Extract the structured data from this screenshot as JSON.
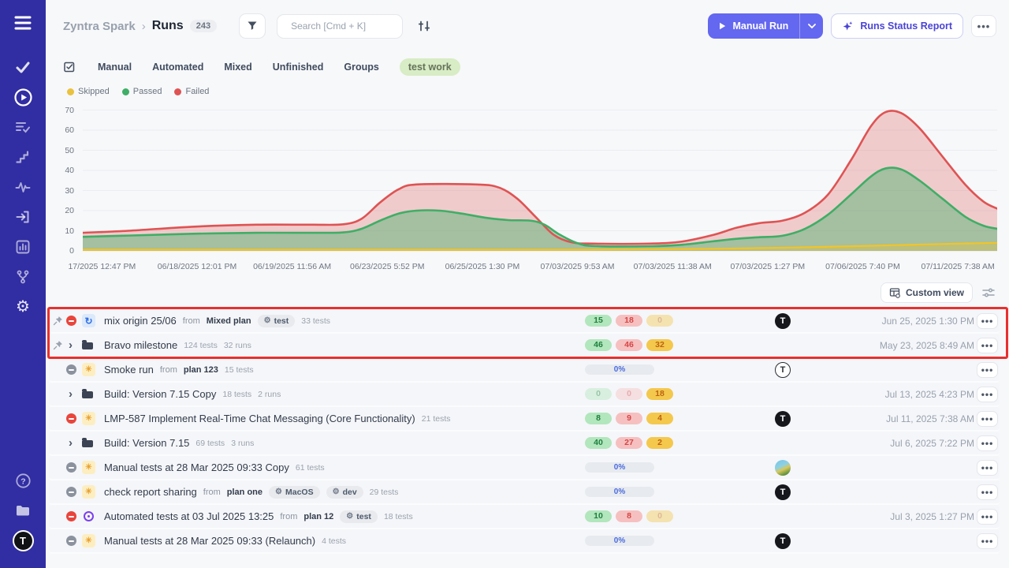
{
  "sidebar": {
    "top_icons": [
      "menu-icon",
      "check-icon",
      "play-circle-icon",
      "test-list-icon",
      "steps-icon",
      "pulse-icon",
      "sign-in-icon",
      "bar-chart-icon",
      "branch-icon",
      "gear-icon"
    ],
    "bottom_icons": [
      "help-icon",
      "folder-icon",
      "user-avatar"
    ],
    "active_icon": "play-circle-icon",
    "brand_color": "#312ea3"
  },
  "header": {
    "breadcrumb": {
      "app": "Zyntra Spark",
      "separator": "›",
      "page": "Runs",
      "count": "243"
    },
    "search": {
      "placeholder": "Search [Cmd + K]"
    },
    "manual_run_label": "Manual Run",
    "report_label": "Runs Status Report"
  },
  "tabs": {
    "items": [
      {
        "label": "Manual",
        "pill": false
      },
      {
        "label": "Automated",
        "pill": false
      },
      {
        "label": "Mixed",
        "pill": false
      },
      {
        "label": "Unfinished",
        "pill": false
      },
      {
        "label": "Groups",
        "pill": false
      },
      {
        "label": "test work",
        "pill": true
      }
    ]
  },
  "chart": {
    "legend": [
      {
        "label": "Skipped",
        "color": "#e9c23f"
      },
      {
        "label": "Passed",
        "color": "#3fae66"
      },
      {
        "label": "Failed",
        "color": "#df5353"
      }
    ],
    "y_ticks": [
      70,
      60,
      50,
      40,
      30,
      20,
      10,
      0
    ],
    "x_ticks": [
      "17/2025 12:47 PM",
      "06/18/2025 12:01 PM",
      "06/19/2025 11:56 AM",
      "06/23/2025 5:52 PM",
      "06/25/2025 1:30 PM",
      "07/03/2025 9:53 AM",
      "07/03/2025 11:38 AM",
      "07/03/2025 1:27 PM",
      "07/06/2025 7:40 PM",
      "07/11/2025 7:38 AM"
    ],
    "chart_data": {
      "type": "area",
      "categories": [
        "17/2025 12:47 PM",
        "06/18/2025 12:01 PM",
        "06/19/2025 11:56 AM",
        "06/23/2025 5:52 PM",
        "06/25/2025 1:30 PM",
        "07/03/2025 9:53 AM",
        "07/03/2025 11:38 AM",
        "07/03/2025 1:27 PM",
        "07/06/2025 7:40 PM",
        "07/11/2025 7:38 AM"
      ],
      "series": [
        {
          "name": "Failed",
          "color": "#df5353",
          "values": [
            9,
            12,
            13,
            33,
            33,
            4,
            4,
            14,
            69,
            21
          ]
        },
        {
          "name": "Passed",
          "color": "#3fae66",
          "values": [
            7,
            8.5,
            9,
            20,
            16,
            2.3,
            3,
            7,
            41,
            11
          ]
        },
        {
          "name": "Skipped",
          "color": "#f2c428",
          "values": [
            0.6,
            0.6,
            0.6,
            0.6,
            0.6,
            0.8,
            1,
            1.7,
            2.5,
            4
          ]
        }
      ],
      "title": "",
      "xlabel": "",
      "ylabel": "",
      "ylim": [
        0,
        70
      ],
      "grid": true,
      "legend_position": "top-left"
    },
    "render": {
      "tick_fx": [
        0.021,
        0.125,
        0.229,
        0.333,
        0.437,
        0.541,
        0.645,
        0.749,
        0.853,
        0.957
      ],
      "failed": [
        [
          0,
          9
        ],
        [
          0.05,
          10
        ],
        [
          0.12,
          12
        ],
        [
          0.19,
          13
        ],
        [
          0.25,
          13
        ],
        [
          0.285,
          13.2
        ],
        [
          0.305,
          16
        ],
        [
          0.325,
          24
        ],
        [
          0.345,
          30.5
        ],
        [
          0.365,
          33
        ],
        [
          0.43,
          33
        ],
        [
          0.455,
          31.5
        ],
        [
          0.475,
          26
        ],
        [
          0.495,
          17
        ],
        [
          0.515,
          8
        ],
        [
          0.535,
          4.2
        ],
        [
          0.56,
          3.6
        ],
        [
          0.62,
          3.6
        ],
        [
          0.655,
          4.6
        ],
        [
          0.69,
          8
        ],
        [
          0.715,
          11.5
        ],
        [
          0.74,
          13.8
        ],
        [
          0.765,
          15
        ],
        [
          0.79,
          19
        ],
        [
          0.815,
          28
        ],
        [
          0.84,
          45
        ],
        [
          0.862,
          62
        ],
        [
          0.878,
          69
        ],
        [
          0.895,
          68.5
        ],
        [
          0.915,
          61
        ],
        [
          0.94,
          47
        ],
        [
          0.965,
          33
        ],
        [
          0.985,
          24.5
        ],
        [
          1,
          21
        ]
      ],
      "passed": [
        [
          0,
          7
        ],
        [
          0.05,
          7.6
        ],
        [
          0.12,
          8.5
        ],
        [
          0.19,
          9
        ],
        [
          0.25,
          9
        ],
        [
          0.285,
          9.2
        ],
        [
          0.305,
          11
        ],
        [
          0.325,
          15
        ],
        [
          0.345,
          18.5
        ],
        [
          0.365,
          20
        ],
        [
          0.39,
          20
        ],
        [
          0.415,
          18.5
        ],
        [
          0.44,
          16.5
        ],
        [
          0.465,
          15.3
        ],
        [
          0.49,
          15
        ],
        [
          0.505,
          13
        ],
        [
          0.52,
          8.5
        ],
        [
          0.54,
          4
        ],
        [
          0.56,
          2.4
        ],
        [
          0.62,
          2.3
        ],
        [
          0.655,
          3
        ],
        [
          0.69,
          4.8
        ],
        [
          0.715,
          6
        ],
        [
          0.74,
          6.8
        ],
        [
          0.765,
          7.5
        ],
        [
          0.79,
          11
        ],
        [
          0.815,
          18
        ],
        [
          0.84,
          28
        ],
        [
          0.862,
          37
        ],
        [
          0.878,
          41
        ],
        [
          0.895,
          40.5
        ],
        [
          0.915,
          35
        ],
        [
          0.94,
          26
        ],
        [
          0.965,
          17
        ],
        [
          0.985,
          12.5
        ],
        [
          1,
          11
        ]
      ],
      "skipped": [
        [
          0,
          0.6
        ],
        [
          0.2,
          0.6
        ],
        [
          0.4,
          0.6
        ],
        [
          0.55,
          0.6
        ],
        [
          0.62,
          0.8
        ],
        [
          0.7,
          1.1
        ],
        [
          0.78,
          1.7
        ],
        [
          0.86,
          2.5
        ],
        [
          0.93,
          3.3
        ],
        [
          1,
          4
        ]
      ]
    }
  },
  "toolbar": {
    "custom_view": "Custom view"
  },
  "list": {
    "from_label": "from"
  },
  "runs": [
    {
      "pinned": true,
      "status": "failed",
      "expander": false,
      "type": "sync",
      "title": "mix origin 25/06",
      "plan": "Mixed plan",
      "env": [
        "test"
      ],
      "counts": [
        "33 tests"
      ],
      "results": {
        "kind": "badges",
        "badges": [
          {
            "v": "15",
            "c": "green",
            "faint": false
          },
          {
            "v": "18",
            "c": "red",
            "faint": false
          },
          {
            "v": "0",
            "c": "yellow",
            "faint": true
          }
        ]
      },
      "avatar": "dark",
      "date": "Jun 25, 2025 1:30 PM"
    },
    {
      "pinned": true,
      "status": "",
      "expander": true,
      "type": "folder",
      "title": "Bravo milestone",
      "plan": "",
      "env": [],
      "counts": [
        "124 tests",
        "32 runs"
      ],
      "results": {
        "kind": "badges",
        "badges": [
          {
            "v": "46",
            "c": "green",
            "faint": false
          },
          {
            "v": "46",
            "c": "red",
            "faint": false
          },
          {
            "v": "32",
            "c": "yellow",
            "faint": false
          }
        ]
      },
      "avatar": "",
      "date": "May 23, 2025 8:49 AM"
    },
    {
      "pinned": false,
      "status": "idle",
      "expander": false,
      "type": "manual",
      "title": "Smoke run",
      "plan": "plan 123",
      "env": [],
      "counts": [
        "15 tests"
      ],
      "results": {
        "kind": "progress",
        "label": "0%"
      },
      "avatar": "light",
      "date": ""
    },
    {
      "pinned": false,
      "status": "",
      "expander": true,
      "type": "folder",
      "title": "Build: Version 7.15 Copy",
      "plan": "",
      "env": [],
      "counts": [
        "18 tests",
        "2 runs"
      ],
      "results": {
        "kind": "badges",
        "badges": [
          {
            "v": "0",
            "c": "green",
            "faint": true
          },
          {
            "v": "0",
            "c": "red",
            "faint": true
          },
          {
            "v": "18",
            "c": "yellow",
            "faint": false
          }
        ]
      },
      "avatar": "",
      "date": "Jul 13, 2025 4:23 PM"
    },
    {
      "pinned": false,
      "status": "failed",
      "expander": false,
      "type": "manual",
      "title": "LMP-587 Implement Real-Time Chat Messaging (Core Functionality)",
      "plan": "",
      "env": [],
      "counts": [
        "21 tests"
      ],
      "results": {
        "kind": "badges",
        "badges": [
          {
            "v": "8",
            "c": "green",
            "faint": false
          },
          {
            "v": "9",
            "c": "red",
            "faint": false
          },
          {
            "v": "4",
            "c": "yellow",
            "faint": false
          }
        ]
      },
      "avatar": "dark",
      "date": "Jul 11, 2025 7:38 AM"
    },
    {
      "pinned": false,
      "status": "",
      "expander": true,
      "type": "folder",
      "title": "Build: Version 7.15",
      "plan": "",
      "env": [],
      "counts": [
        "69 tests",
        "3 runs"
      ],
      "results": {
        "kind": "badges",
        "badges": [
          {
            "v": "40",
            "c": "green",
            "faint": false
          },
          {
            "v": "27",
            "c": "red",
            "faint": false
          },
          {
            "v": "2",
            "c": "yellow",
            "faint": false
          }
        ]
      },
      "avatar": "",
      "date": "Jul 6, 2025 7:22 PM"
    },
    {
      "pinned": false,
      "status": "idle",
      "expander": false,
      "type": "manual",
      "title": "Manual tests at 28 Mar 2025 09:33 Copy",
      "plan": "",
      "env": [],
      "counts": [
        "61 tests"
      ],
      "results": {
        "kind": "progress",
        "label": "0%"
      },
      "avatar": "globe",
      "date": ""
    },
    {
      "pinned": false,
      "status": "idle",
      "expander": false,
      "type": "manual",
      "title": "check report sharing",
      "plan": "plan one",
      "env": [
        "MacOS",
        "dev"
      ],
      "counts": [
        "29 tests"
      ],
      "results": {
        "kind": "progress",
        "label": "0%"
      },
      "avatar": "dark",
      "date": ""
    },
    {
      "pinned": false,
      "status": "failed",
      "expander": false,
      "type": "automated",
      "title": "Automated tests at 03 Jul 2025 13:25",
      "plan": "plan 12",
      "env": [
        "test"
      ],
      "counts": [
        "18 tests"
      ],
      "results": {
        "kind": "badges",
        "badges": [
          {
            "v": "10",
            "c": "green",
            "faint": false
          },
          {
            "v": "8",
            "c": "red",
            "faint": false
          },
          {
            "v": "0",
            "c": "yellow",
            "faint": true
          }
        ]
      },
      "avatar": "",
      "date": "Jul 3, 2025 1:27 PM"
    },
    {
      "pinned": false,
      "status": "idle",
      "expander": false,
      "type": "manual",
      "title": "Manual tests at 28 Mar 2025 09:33 (Relaunch)",
      "plan": "",
      "env": [],
      "counts": [
        "4 tests"
      ],
      "results": {
        "kind": "progress",
        "label": "0%"
      },
      "avatar": "dark",
      "date": ""
    }
  ],
  "annotation": {
    "color": "#e8302e"
  }
}
